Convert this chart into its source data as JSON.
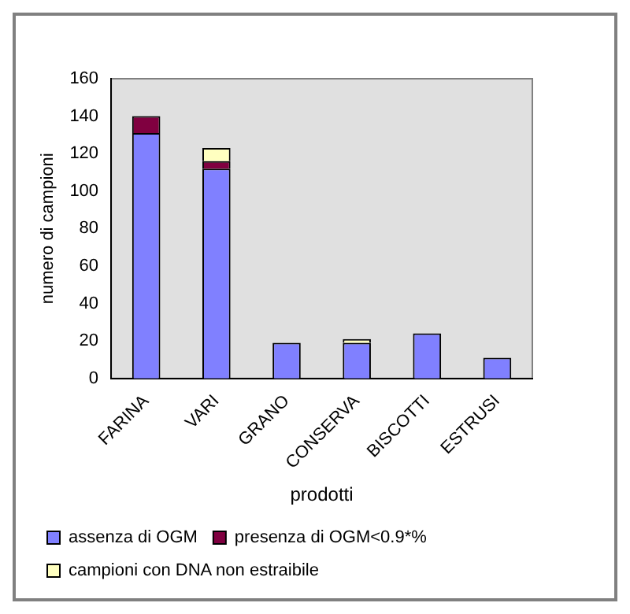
{
  "chart_data": {
    "type": "bar",
    "xlabel": "prodotti",
    "ylabel": "numero di campioni",
    "categories": [
      "FARINA",
      "VARI",
      "GRANO",
      "CONSERVA",
      "BISCOTTI",
      "ESTRUSI"
    ],
    "series": [
      {
        "name": "assenza di OGM",
        "color": "#8080ff",
        "values": [
          131,
          112,
          19,
          19,
          24,
          11
        ]
      },
      {
        "name": "presenza di OGM<0.9*%",
        "color": "#800040",
        "values": [
          9,
          4,
          0,
          0,
          0,
          0
        ]
      },
      {
        "name": "campioni con DNA non estraibile",
        "color": "#ffffc0",
        "values": [
          0,
          7,
          0,
          2,
          0,
          0
        ]
      }
    ],
    "stacked": true,
    "ylim": [
      0,
      160
    ],
    "yticks": [
      0,
      20,
      40,
      60,
      80,
      100,
      120,
      140,
      160
    ],
    "grid": false,
    "legend": "bottom"
  }
}
